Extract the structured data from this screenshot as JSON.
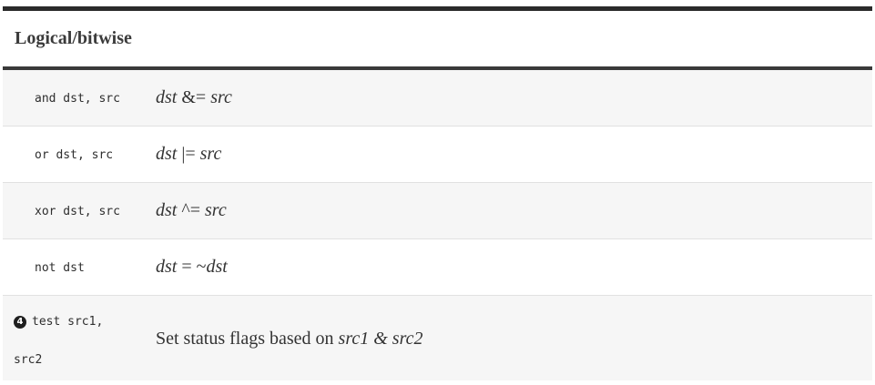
{
  "table": {
    "title": "Logical/bitwise",
    "rows": [
      {
        "code": "and dst, src",
        "desc_lhs": "dst",
        "desc_op": " &= ",
        "desc_rhs": "src"
      },
      {
        "code": "or dst, src",
        "desc_lhs": "dst",
        "desc_op": " |= ",
        "desc_rhs": "src"
      },
      {
        "code": "xor dst, src",
        "desc_lhs": "dst",
        "desc_op": " ^= ",
        "desc_rhs": "src"
      },
      {
        "code": "not dst",
        "desc_lhs": "dst",
        "desc_op": " = ~",
        "desc_rhs": "dst"
      },
      {
        "callout": "4",
        "code_line1": "test src1,",
        "code_line2": "src2",
        "desc_prefix": "Set status flags based on ",
        "desc_a": "src1",
        "desc_op": " & ",
        "desc_b": "src2"
      }
    ]
  }
}
